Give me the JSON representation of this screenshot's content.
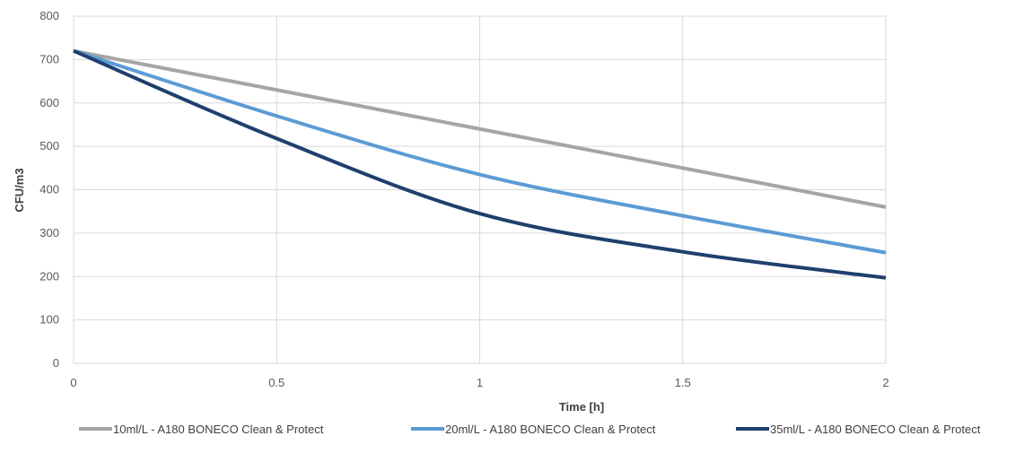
{
  "chart_data": {
    "type": "line",
    "title": "",
    "xlabel": "Time [h]",
    "ylabel": "CFU/m3",
    "xlim": [
      0,
      2
    ],
    "ylim": [
      0,
      800
    ],
    "x_ticks": [
      "0",
      "0.5",
      "1",
      "1.5",
      "2"
    ],
    "y_ticks": [
      "0",
      "100",
      "200",
      "300",
      "400",
      "500",
      "600",
      "700",
      "800"
    ],
    "grid": true,
    "legend_position": "bottom",
    "series": [
      {
        "name": "10ml/L - A180 BONECO Clean & Protect",
        "color": "#a5a5a5",
        "x": [
          0,
          0.5,
          1,
          1.5,
          2
        ],
        "y": [
          720,
          630,
          540,
          450,
          360
        ]
      },
      {
        "name": "20ml/L - A180 BONECO Clean & Protect",
        "color": "#5b9bd5",
        "x": [
          0,
          0.5,
          1,
          1.5,
          2
        ],
        "y": [
          720,
          570,
          435,
          340,
          255
        ]
      },
      {
        "name": "35ml/L - A180 BONECO Clean & Protect",
        "color": "#1f3f6e",
        "x": [
          0,
          0.5,
          1,
          1.5,
          2
        ],
        "y": [
          720,
          518,
          345,
          257,
          197
        ]
      }
    ]
  }
}
